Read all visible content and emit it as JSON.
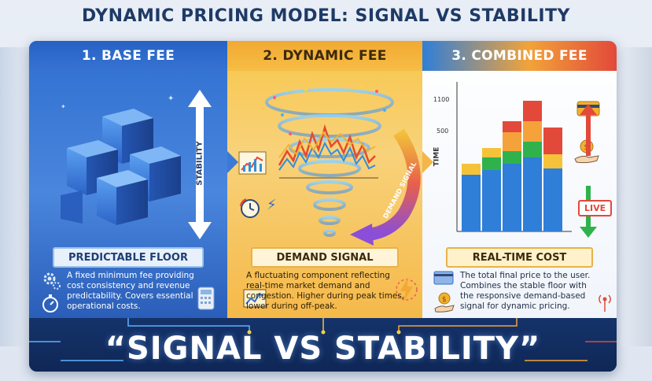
{
  "title": "DYNAMIC PRICING MODEL: SIGNAL VS STABILITY",
  "panels": [
    {
      "heading": "1. BASE FEE",
      "side_label": "STABILITY",
      "banner": "PREDICTABLE FLOOR",
      "description": "A fixed minimum fee providing cost consistency and revenue predictability. Covers essential operational costs."
    },
    {
      "heading": "2. DYNAMIC FEE",
      "side_label": "DEMAND SIGNAL",
      "banner": "DEMAND SIGNAL",
      "description": "A fluctuating component reflecting real-time market demand and congestion. Higher during peak times, lower during off-peak."
    },
    {
      "heading": "3. COMBINED FEE",
      "axis_label": "TIME",
      "axis_ticks": [
        "1100",
        "500"
      ],
      "live_badge": "LIVE",
      "banner": "REAL-TIME COST",
      "description": "The total final price to the user. Combines the stable floor with the responsive demand-based signal for dynamic pricing."
    }
  ],
  "slogan": "“SIGNAL VS STABILITY”",
  "colors": {
    "blue": "#2f6fd0",
    "amber": "#f5b94a",
    "red": "#e2493a",
    "green": "#2fb24c",
    "navy": "#173a73"
  }
}
